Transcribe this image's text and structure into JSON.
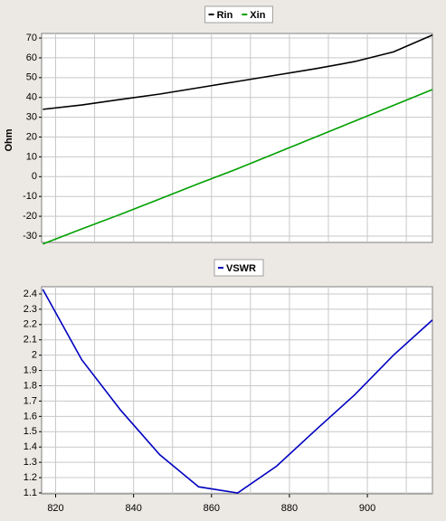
{
  "chart_data": [
    {
      "type": "line",
      "ylabel": "Ohm",
      "x": [
        816.7,
        826.7,
        836.7,
        846.7,
        856.7,
        866.7,
        876.7,
        886.7,
        896.7,
        906.7,
        916.7
      ],
      "series": [
        {
          "name": "Rin",
          "color": "#000000",
          "values": [
            34,
            36.2,
            39,
            41.7,
            44.9,
            48.1,
            51.3,
            54.5,
            58.1,
            63,
            71.5
          ]
        },
        {
          "name": "Xin",
          "color": "#00a000",
          "values": [
            -34,
            -26.4,
            -19,
            -11.3,
            -3.5,
            4,
            12,
            20,
            28,
            36,
            44
          ]
        }
      ],
      "xlim": [
        816.4,
        916.7
      ],
      "ylim": [
        -33.2,
        72.3
      ],
      "yticks": [
        -30,
        -20,
        -10,
        0,
        10,
        20,
        30,
        40,
        50,
        60,
        70
      ],
      "xgrid": [
        820,
        830,
        840,
        850,
        860,
        870,
        880,
        890,
        900,
        910
      ],
      "grid": true
    },
    {
      "type": "line",
      "x": [
        816.7,
        826.7,
        836.7,
        846.7,
        856.7,
        866.7,
        876.7,
        886.7,
        896.7,
        906.7,
        916.7
      ],
      "series": [
        {
          "name": "VSWR",
          "color": "#0000c0",
          "values": [
            2.43,
            1.97,
            1.64,
            1.35,
            1.14,
            1.1,
            1.275,
            1.51,
            1.74,
            2.0,
            2.23
          ]
        }
      ],
      "xlim": [
        816.4,
        916.7
      ],
      "ylim": [
        1.094,
        2.447
      ],
      "yticks": [
        1.1,
        1.2,
        1.3,
        1.4,
        1.5,
        1.6,
        1.7,
        1.8,
        1.9,
        2,
        2.1,
        2.2,
        2.3,
        2.4
      ],
      "xticks": [
        820,
        840,
        860,
        880,
        900
      ],
      "xgrid": [
        820,
        830,
        840,
        850,
        860,
        870,
        880,
        890,
        900,
        910
      ],
      "grid": true
    }
  ]
}
